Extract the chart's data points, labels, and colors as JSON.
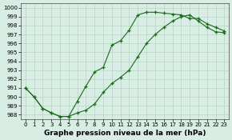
{
  "series1_x": [
    0,
    1,
    2,
    3,
    4,
    5,
    6,
    7,
    8,
    9,
    10,
    11,
    12,
    13,
    14,
    15,
    16,
    17,
    18,
    19,
    20,
    21,
    22,
    23
  ],
  "series1_y": [
    991.0,
    990.0,
    988.7,
    988.2,
    987.8,
    987.8,
    989.5,
    991.2,
    992.8,
    993.3,
    995.8,
    996.3,
    997.5,
    999.2,
    999.5,
    999.5,
    999.4,
    999.3,
    999.2,
    998.8,
    998.8,
    998.2,
    997.8,
    997.4
  ],
  "series2_x": [
    0,
    1,
    2,
    3,
    4,
    5,
    6,
    7,
    8,
    9,
    10,
    11,
    12,
    13,
    14,
    15,
    16,
    17,
    18,
    19,
    20,
    21,
    22,
    23
  ],
  "series2_y": [
    991.0,
    990.0,
    988.7,
    988.2,
    987.8,
    987.8,
    988.2,
    988.5,
    989.2,
    990.5,
    991.5,
    992.2,
    993.0,
    994.5,
    996.0,
    997.0,
    997.8,
    998.5,
    999.0,
    999.2,
    998.5,
    997.8,
    997.3,
    997.2
  ],
  "line_color": "#1a6b1a",
  "marker_color": "#1a6b1a",
  "bg_color": "#d8ede3",
  "grid_color": "#b0cfc0",
  "title": "Graphe pression niveau de la mer (hPa)",
  "ylim": [
    987.5,
    1000.5
  ],
  "xlim": [
    -0.5,
    23.5
  ],
  "yticks": [
    988,
    989,
    990,
    991,
    992,
    993,
    994,
    995,
    996,
    997,
    998,
    999,
    1000
  ],
  "xticks": [
    0,
    1,
    2,
    3,
    4,
    5,
    6,
    7,
    8,
    9,
    10,
    11,
    12,
    13,
    14,
    15,
    16,
    17,
    18,
    19,
    20,
    21,
    22,
    23
  ],
  "title_fontsize": 6.5,
  "tick_fontsize": 5.0,
  "figsize": [
    2.9,
    1.75
  ],
  "dpi": 100
}
